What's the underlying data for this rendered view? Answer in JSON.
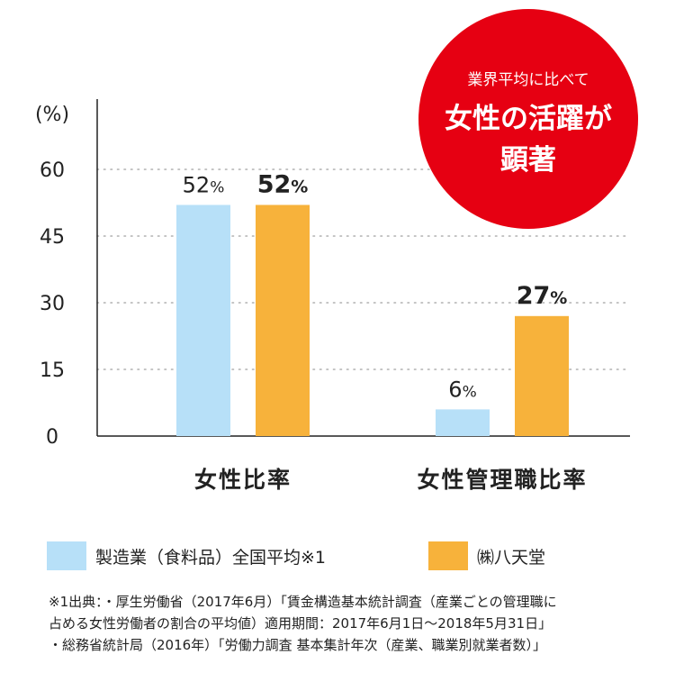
{
  "chart_data": {
    "type": "bar",
    "y_unit_label": "(%)",
    "ylim": [
      0,
      60
    ],
    "yticks": [
      0,
      15,
      30,
      45,
      60
    ],
    "categories": [
      "女性比率",
      "女性管理職比率"
    ],
    "series": [
      {
        "name": "製造業（食料品）全国平均※1",
        "values": [
          52,
          6
        ],
        "color": "#b7e0f8",
        "data_labels": [
          "52%",
          "6%"
        ]
      },
      {
        "name": "㈱八天堂",
        "values": [
          52,
          27
        ],
        "color": "#f7b23b",
        "data_labels": [
          "52%",
          "27%"
        ]
      }
    ],
    "grid": "dotted"
  },
  "badge": {
    "line1": "業界平均に比べて",
    "line2": "女性の活躍が",
    "line3": "顕著",
    "color": "#e60012"
  },
  "notes": [
    "※1出典：・厚生労働省（2017年6月）「賃金構造基本統計調査（産業ごとの管理職に",
    "占める女性労働者の割合の平均値）適用期間：2017年6月1日～2018年5月31日」",
    "・総務省統計局（2016年）「労働力調査 基本集計年次（産業、職業別就業者数）」"
  ]
}
